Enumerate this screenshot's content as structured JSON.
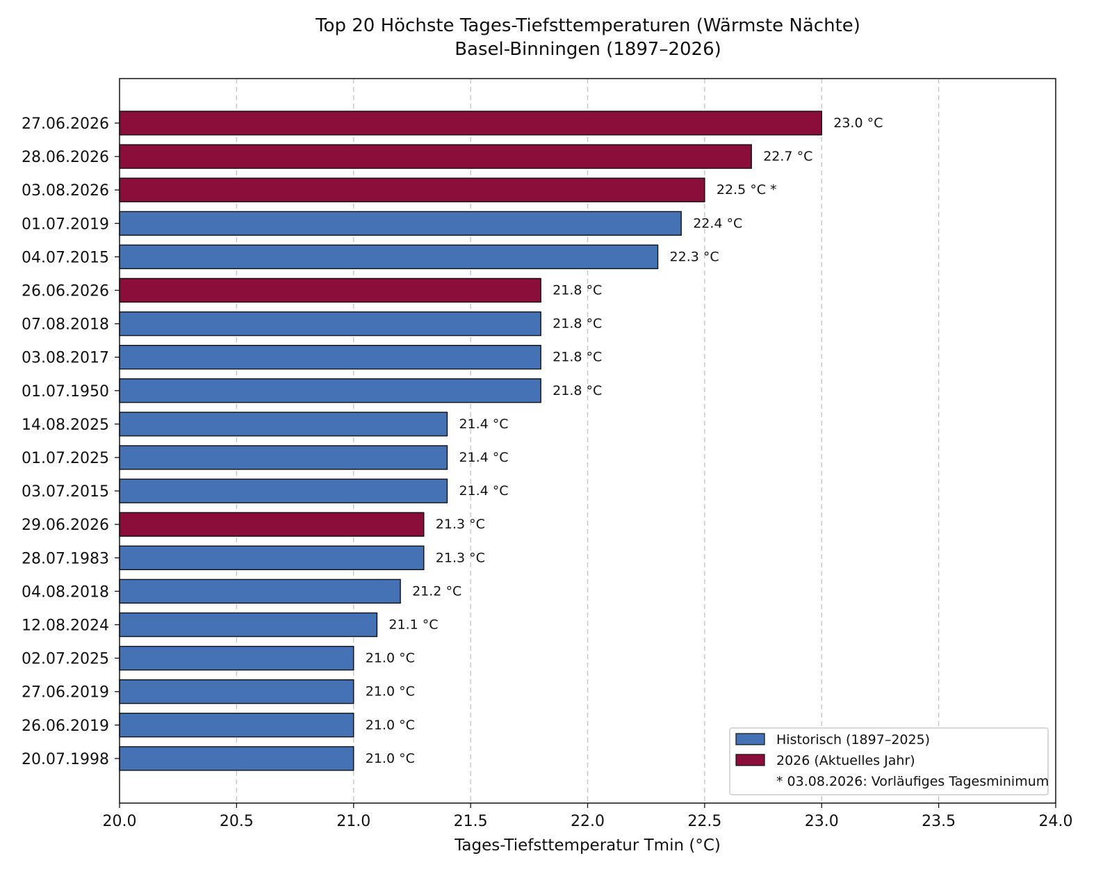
{
  "chart_data": {
    "type": "bar",
    "orientation": "horizontal",
    "title": "Top 20 Höchste Tages-Tiefsttemperaturen (Wärmste Nächte)",
    "subtitle": "Basel-Binningen (1897–2026)",
    "xlabel": "Tages-Tiefsttemperatur Tmin (°C)",
    "ylabel": "",
    "xlim": [
      20.0,
      24.0
    ],
    "xticks": [
      "20.0",
      "20.5",
      "21.0",
      "21.5",
      "22.0",
      "22.5",
      "23.0",
      "23.5",
      "24.0"
    ],
    "grid": "vertical dashed",
    "legend_position": "bottom-right",
    "colors": {
      "historic": "#4472b4",
      "current": "#8b0d3a"
    },
    "legend": [
      {
        "label": "Historisch (1897–2025)",
        "group": "historic"
      },
      {
        "label": "2026 (Aktuelles Jahr)",
        "group": "current"
      },
      {
        "label": "* 03.08.2026: Vorläufiges Tagesminimum",
        "group": "note"
      }
    ],
    "bars": [
      {
        "date": "27.06.2026",
        "value": 23.0,
        "label": "23.0 °C",
        "group": "current"
      },
      {
        "date": "28.06.2026",
        "value": 22.7,
        "label": "22.7 °C",
        "group": "current"
      },
      {
        "date": "03.08.2026",
        "value": 22.5,
        "label": "22.5 °C *",
        "group": "current"
      },
      {
        "date": "01.07.2019",
        "value": 22.4,
        "label": "22.4 °C",
        "group": "historic"
      },
      {
        "date": "04.07.2015",
        "value": 22.3,
        "label": "22.3 °C",
        "group": "historic"
      },
      {
        "date": "26.06.2026",
        "value": 21.8,
        "label": "21.8 °C",
        "group": "current"
      },
      {
        "date": "07.08.2018",
        "value": 21.8,
        "label": "21.8 °C",
        "group": "historic"
      },
      {
        "date": "03.08.2017",
        "value": 21.8,
        "label": "21.8 °C",
        "group": "historic"
      },
      {
        "date": "01.07.1950",
        "value": 21.8,
        "label": "21.8 °C",
        "group": "historic"
      },
      {
        "date": "14.08.2025",
        "value": 21.4,
        "label": "21.4 °C",
        "group": "historic"
      },
      {
        "date": "01.07.2025",
        "value": 21.4,
        "label": "21.4 °C",
        "group": "historic"
      },
      {
        "date": "03.07.2015",
        "value": 21.4,
        "label": "21.4 °C",
        "group": "historic"
      },
      {
        "date": "29.06.2026",
        "value": 21.3,
        "label": "21.3 °C",
        "group": "current"
      },
      {
        "date": "28.07.1983",
        "value": 21.3,
        "label": "21.3 °C",
        "group": "historic"
      },
      {
        "date": "04.08.2018",
        "value": 21.2,
        "label": "21.2 °C",
        "group": "historic"
      },
      {
        "date": "12.08.2024",
        "value": 21.1,
        "label": "21.1 °C",
        "group": "historic"
      },
      {
        "date": "02.07.2025",
        "value": 21.0,
        "label": "21.0 °C",
        "group": "historic"
      },
      {
        "date": "27.06.2019",
        "value": 21.0,
        "label": "21.0 °C",
        "group": "historic"
      },
      {
        "date": "26.06.2019",
        "value": 21.0,
        "label": "21.0 °C",
        "group": "historic"
      },
      {
        "date": "20.07.1998",
        "value": 21.0,
        "label": "21.0 °C",
        "group": "historic"
      }
    ]
  }
}
